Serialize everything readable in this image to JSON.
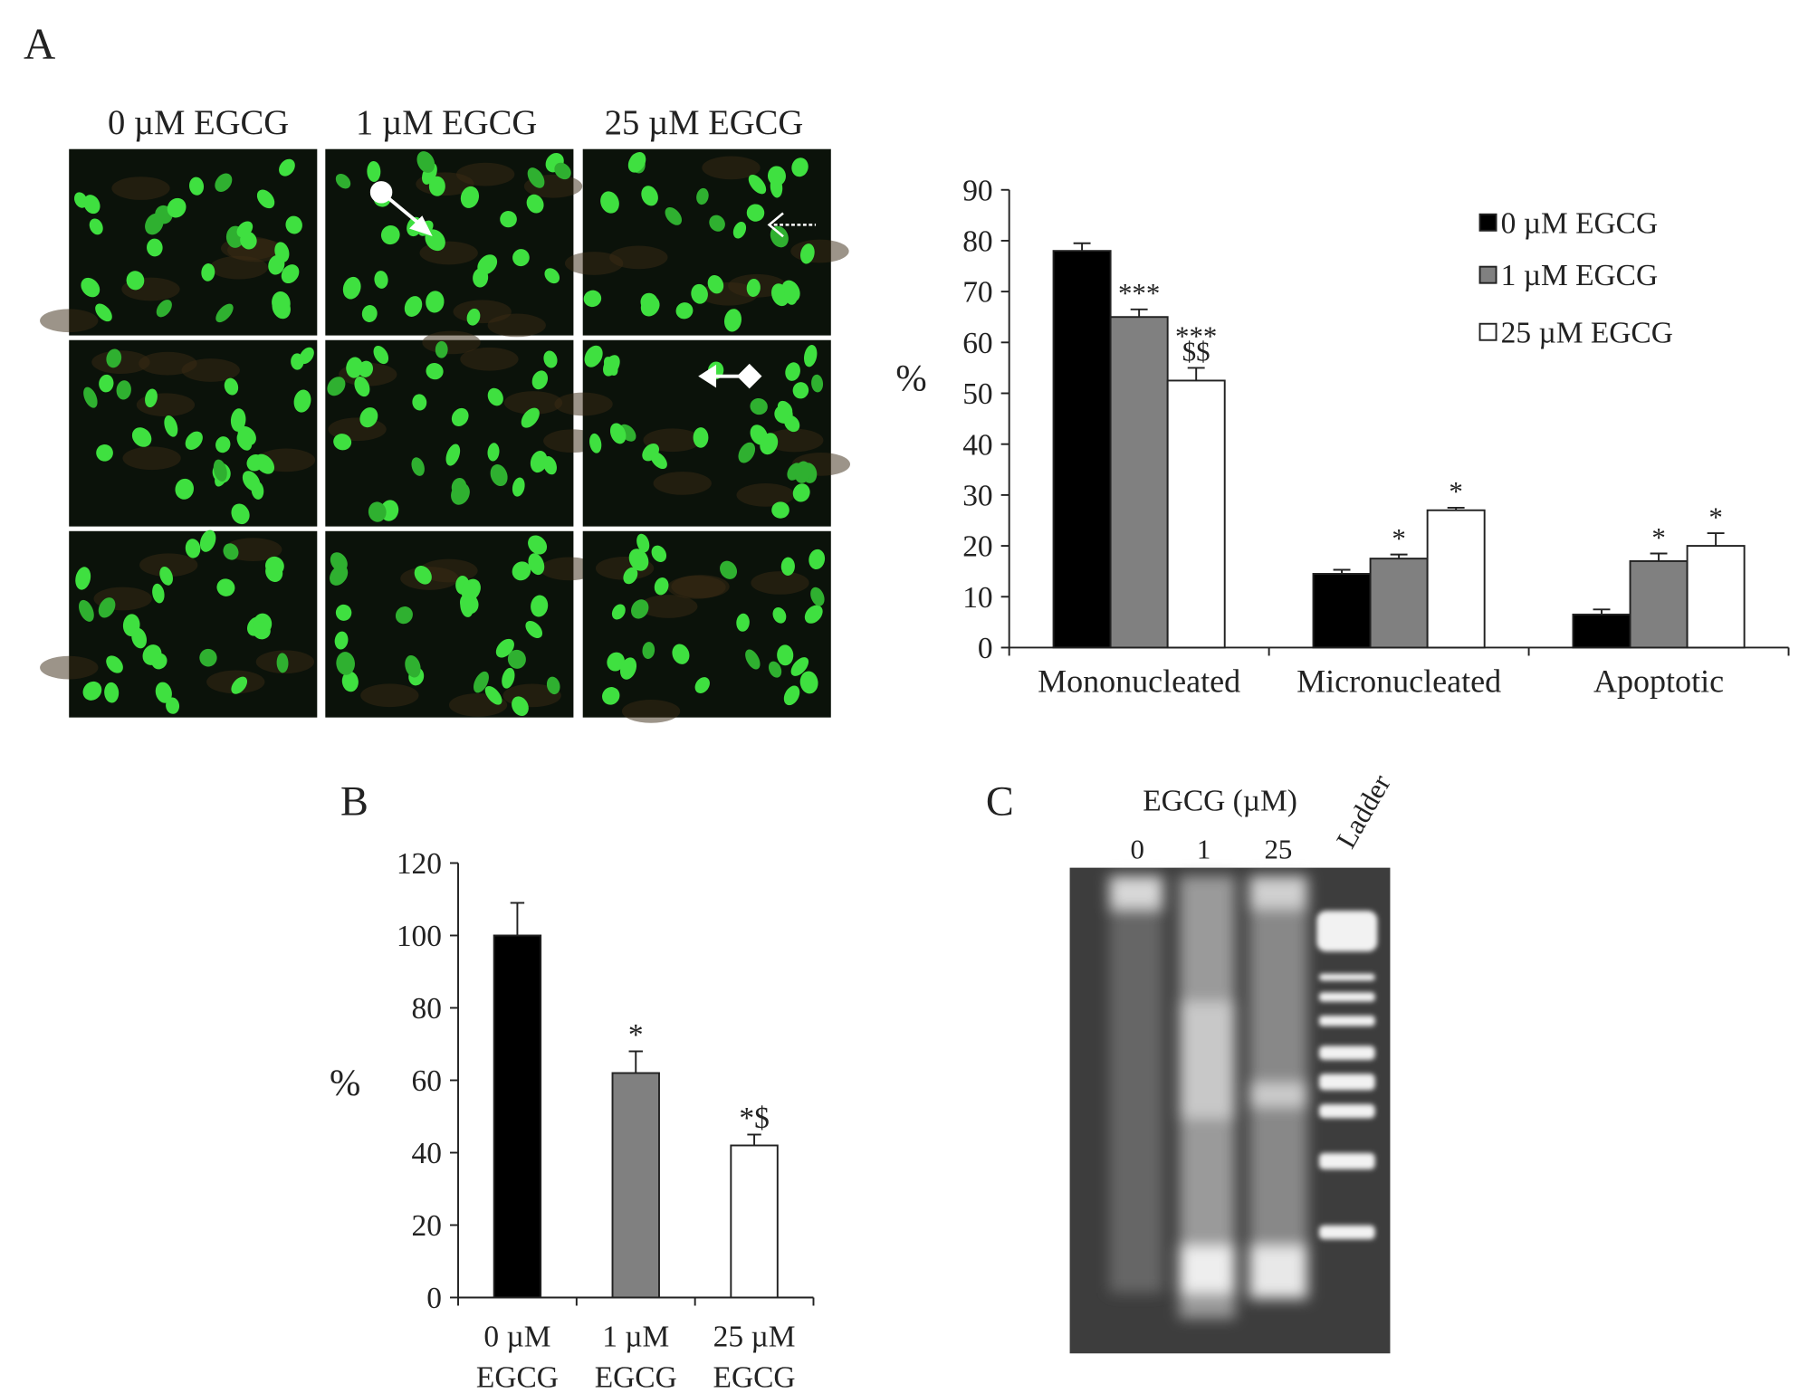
{
  "panels": {
    "a": "A",
    "b": "B",
    "c": "C"
  },
  "micrographs": {
    "columns": [
      "0 µM EGCG",
      "1 µM EGCG",
      "25 µM EGCG"
    ]
  },
  "gel": {
    "title": "EGCG (µM)",
    "lanes": [
      "0",
      "1",
      "25",
      "Ladder"
    ]
  },
  "chart_data": [
    {
      "type": "bar",
      "y_label": "%",
      "categories": [
        "Mononucleated",
        "Micronucleated",
        "Apoptotic"
      ],
      "series": [
        {
          "name": "0 µM EGCG",
          "color": "#000000",
          "values": [
            78,
            14.5,
            6.5
          ],
          "errors": [
            1.5,
            0.8,
            1
          ],
          "annotations": [
            null,
            null,
            null
          ]
        },
        {
          "name": "1 µM EGCG",
          "color": "#808080",
          "values": [
            65,
            17.5,
            17
          ],
          "errors": [
            1.5,
            0.8,
            1.5
          ],
          "annotations": [
            [
              "***"
            ],
            [
              "*"
            ],
            [
              "*"
            ]
          ]
        },
        {
          "name": "25 µM EGCG",
          "color": "#ffffff",
          "values": [
            52.5,
            27,
            20
          ],
          "errors": [
            2.5,
            0.5,
            2.5
          ],
          "annotations": [
            [
              "***",
              "$$"
            ],
            [
              "*"
            ],
            [
              "*"
            ]
          ]
        }
      ],
      "ylim": [
        0,
        90
      ],
      "yticks": [
        0,
        10,
        20,
        30,
        40,
        50,
        60,
        70,
        80,
        90
      ],
      "legend": "upper right"
    },
    {
      "type": "bar",
      "y_label": "%",
      "categories": [
        [
          "0 µM",
          "EGCG"
        ],
        [
          "1 µM",
          "EGCG"
        ],
        [
          "25 µM",
          "EGCG"
        ]
      ],
      "values": [
        100,
        62,
        42
      ],
      "errors": [
        9,
        6,
        3
      ],
      "colors": [
        "#000000",
        "#808080",
        "#ffffff"
      ],
      "annotations": [
        null,
        [
          "*"
        ],
        [
          "*$"
        ]
      ],
      "ylim": [
        0,
        120
      ],
      "yticks": [
        0,
        20,
        40,
        60,
        80,
        100,
        120
      ]
    }
  ]
}
